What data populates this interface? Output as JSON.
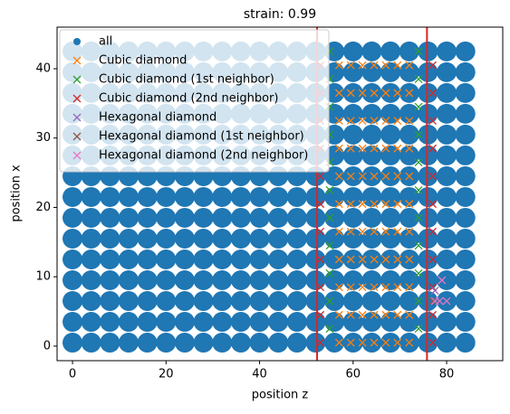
{
  "chart_data": {
    "type": "scatter",
    "title": "strain: 0.99",
    "xlabel": "position z",
    "ylabel": "position x",
    "xlim": [
      -3.3,
      92
    ],
    "ylim": [
      -2.1,
      46
    ],
    "xticks": [
      0,
      20,
      40,
      60,
      80
    ],
    "yticks": [
      0,
      10,
      20,
      30,
      40
    ],
    "legend": "upper left",
    "vlines": {
      "color": "#d62728",
      "values": [
        52.3,
        75.8
      ]
    },
    "series": [
      {
        "name": "all",
        "color": "#1f77b4",
        "marker": "o",
        "x": [
          0,
          4,
          8,
          12,
          16,
          20,
          24,
          28,
          32,
          36,
          40,
          44,
          48,
          52,
          56,
          60,
          64,
          68,
          72,
          76,
          80,
          84,
          0,
          4,
          8,
          12,
          16,
          20,
          24,
          28,
          32,
          36,
          40,
          44,
          48,
          52,
          56,
          60,
          64,
          68,
          72,
          76,
          80,
          84,
          0,
          4,
          8,
          12,
          16,
          20,
          24,
          28,
          32,
          36,
          40,
          44,
          48,
          52,
          56,
          60,
          64,
          68,
          72,
          76,
          80,
          84,
          0,
          4,
          8,
          12,
          16,
          20,
          24,
          28,
          32,
          36,
          40,
          44,
          48,
          52,
          56,
          60,
          64,
          68,
          72,
          76,
          80,
          84,
          0,
          4,
          8,
          12,
          16,
          20,
          24,
          28,
          32,
          36,
          40,
          44,
          48,
          52,
          56,
          60,
          64,
          68,
          72,
          76,
          80,
          84,
          0,
          4,
          8,
          12,
          16,
          20,
          24,
          28,
          32,
          36,
          40,
          44,
          48,
          52,
          56,
          60,
          64,
          68,
          72,
          76,
          80,
          84,
          0,
          4,
          8,
          12,
          16,
          20,
          24,
          28,
          32,
          36,
          40,
          44,
          48,
          52,
          56,
          60,
          64,
          68,
          72,
          76,
          80,
          84,
          0,
          4,
          8,
          12,
          16,
          20,
          24,
          28,
          32,
          36,
          40,
          44,
          48,
          52,
          56,
          60,
          64,
          68,
          72,
          76,
          80,
          84,
          0,
          4,
          8,
          12,
          16,
          20,
          24,
          28,
          32,
          36,
          40,
          44,
          48,
          52,
          56,
          60,
          64,
          68,
          72,
          76,
          80,
          84,
          0,
          4,
          8,
          12,
          16,
          20,
          24,
          28,
          32,
          36,
          40,
          44,
          48,
          52,
          56,
          60,
          64,
          68,
          72,
          76,
          80,
          84,
          0,
          4,
          8,
          12,
          16,
          20,
          24,
          28,
          32,
          36,
          40,
          44,
          48,
          52,
          56,
          60,
          64,
          68,
          72,
          76,
          80,
          84,
          0,
          4,
          8,
          12,
          16,
          20,
          24,
          28,
          32,
          36,
          40,
          44,
          48,
          52,
          56,
          60,
          64,
          68,
          72,
          76,
          80,
          84,
          0,
          4,
          8,
          12,
          16,
          20,
          24,
          28,
          32,
          36,
          40,
          44,
          48,
          52,
          56,
          60,
          64,
          68,
          72,
          76,
          80,
          84,
          0,
          4,
          8,
          12,
          16,
          20,
          24,
          28,
          32,
          36,
          40,
          44,
          48,
          52,
          56,
          60,
          64,
          68,
          72,
          76,
          80,
          84,
          0,
          4,
          8,
          12,
          16,
          20,
          24,
          28,
          32,
          36,
          40,
          44,
          48,
          52,
          56,
          60,
          64,
          68,
          72,
          76,
          80,
          84
        ],
        "y": [
          0.5,
          0.5,
          0.5,
          0.5,
          0.5,
          0.5,
          0.5,
          0.5,
          0.5,
          0.5,
          0.5,
          0.5,
          0.5,
          0.5,
          0.5,
          0.5,
          0.5,
          0.5,
          0.5,
          0.5,
          0.5,
          0.5,
          3.5,
          3.5,
          3.5,
          3.5,
          3.5,
          3.5,
          3.5,
          3.5,
          3.5,
          3.5,
          3.5,
          3.5,
          3.5,
          3.5,
          3.5,
          3.5,
          3.5,
          3.5,
          3.5,
          3.5,
          3.5,
          3.5,
          6.5,
          6.5,
          6.5,
          6.5,
          6.5,
          6.5,
          6.5,
          6.5,
          6.5,
          6.5,
          6.5,
          6.5,
          6.5,
          6.5,
          6.5,
          6.5,
          6.5,
          6.5,
          6.5,
          6.5,
          6.5,
          6.5,
          9.5,
          9.5,
          9.5,
          9.5,
          9.5,
          9.5,
          9.5,
          9.5,
          9.5,
          9.5,
          9.5,
          9.5,
          9.5,
          9.5,
          9.5,
          9.5,
          9.5,
          9.5,
          9.5,
          9.5,
          9.5,
          9.5,
          12.5,
          12.5,
          12.5,
          12.5,
          12.5,
          12.5,
          12.5,
          12.5,
          12.5,
          12.5,
          12.5,
          12.5,
          12.5,
          12.5,
          12.5,
          12.5,
          12.5,
          12.5,
          12.5,
          12.5,
          12.5,
          12.5,
          15.5,
          15.5,
          15.5,
          15.5,
          15.5,
          15.5,
          15.5,
          15.5,
          15.5,
          15.5,
          15.5,
          15.5,
          15.5,
          15.5,
          15.5,
          15.5,
          15.5,
          15.5,
          15.5,
          15.5,
          15.5,
          15.5,
          18.5,
          18.5,
          18.5,
          18.5,
          18.5,
          18.5,
          18.5,
          18.5,
          18.5,
          18.5,
          18.5,
          18.5,
          18.5,
          18.5,
          18.5,
          18.5,
          18.5,
          18.5,
          18.5,
          18.5,
          18.5,
          18.5,
          21.5,
          21.5,
          21.5,
          21.5,
          21.5,
          21.5,
          21.5,
          21.5,
          21.5,
          21.5,
          21.5,
          21.5,
          21.5,
          21.5,
          21.5,
          21.5,
          21.5,
          21.5,
          21.5,
          21.5,
          21.5,
          21.5,
          24.5,
          24.5,
          24.5,
          24.5,
          24.5,
          24.5,
          24.5,
          24.5,
          24.5,
          24.5,
          24.5,
          24.5,
          24.5,
          24.5,
          24.5,
          24.5,
          24.5,
          24.5,
          24.5,
          24.5,
          24.5,
          24.5,
          27.5,
          27.5,
          27.5,
          27.5,
          27.5,
          27.5,
          27.5,
          27.5,
          27.5,
          27.5,
          27.5,
          27.5,
          27.5,
          27.5,
          27.5,
          27.5,
          27.5,
          27.5,
          27.5,
          27.5,
          27.5,
          27.5,
          30.5,
          30.5,
          30.5,
          30.5,
          30.5,
          30.5,
          30.5,
          30.5,
          30.5,
          30.5,
          30.5,
          30.5,
          30.5,
          30.5,
          30.5,
          30.5,
          30.5,
          30.5,
          30.5,
          30.5,
          30.5,
          30.5,
          33.5,
          33.5,
          33.5,
          33.5,
          33.5,
          33.5,
          33.5,
          33.5,
          33.5,
          33.5,
          33.5,
          33.5,
          33.5,
          33.5,
          33.5,
          33.5,
          33.5,
          33.5,
          33.5,
          33.5,
          33.5,
          33.5,
          36.5,
          36.5,
          36.5,
          36.5,
          36.5,
          36.5,
          36.5,
          36.5,
          36.5,
          36.5,
          36.5,
          36.5,
          36.5,
          36.5,
          36.5,
          36.5,
          36.5,
          36.5,
          36.5,
          36.5,
          36.5,
          36.5,
          39.5,
          39.5,
          39.5,
          39.5,
          39.5,
          39.5,
          39.5,
          39.5,
          39.5,
          39.5,
          39.5,
          39.5,
          39.5,
          39.5,
          39.5,
          39.5,
          39.5,
          39.5,
          39.5,
          39.5,
          39.5,
          39.5,
          42.5,
          42.5,
          42.5,
          42.5,
          42.5,
          42.5,
          42.5,
          42.5,
          42.5,
          42.5,
          42.5,
          42.5,
          42.5,
          42.5,
          42.5,
          42.5,
          42.5,
          42.5,
          42.5,
          42.5,
          42.5,
          42.5
        ]
      },
      {
        "name": "Cubic diamond",
        "color": "#ff7f0e",
        "marker": "x",
        "x": [
          57,
          59.5,
          62,
          64.5,
          67,
          69.5,
          72,
          57,
          59.5,
          62,
          64.5,
          67,
          69.5,
          72,
          57,
          59.5,
          62,
          64.5,
          67,
          69.5,
          72,
          57,
          59.5,
          62,
          64.5,
          67,
          69.5,
          72,
          57,
          59.5,
          62,
          64.5,
          67,
          69.5,
          72,
          57,
          59.5,
          62,
          64.5,
          67,
          69.5,
          72,
          57,
          59.5,
          62,
          64.5,
          67,
          69.5,
          72,
          57,
          59.5,
          62,
          64.5,
          67,
          69.5,
          72,
          57,
          59.5,
          62,
          64.5,
          67,
          69.5,
          72,
          57,
          59.5,
          62,
          64.5,
          67,
          69.5,
          72,
          57,
          59.5,
          62,
          64.5,
          67,
          69.5,
          72
        ],
        "y": [
          0.5,
          0.5,
          0.5,
          0.5,
          0.5,
          0.5,
          0.5,
          4.5,
          4.5,
          4.5,
          4.5,
          4.5,
          4.5,
          4.5,
          8.5,
          8.5,
          8.5,
          8.5,
          8.5,
          8.5,
          8.5,
          12.5,
          12.5,
          12.5,
          12.5,
          12.5,
          12.5,
          12.5,
          16.5,
          16.5,
          16.5,
          16.5,
          16.5,
          16.5,
          16.5,
          20.5,
          20.5,
          20.5,
          20.5,
          20.5,
          20.5,
          20.5,
          24.5,
          24.5,
          24.5,
          24.5,
          24.5,
          24.5,
          24.5,
          28.5,
          28.5,
          28.5,
          28.5,
          28.5,
          28.5,
          28.5,
          32.5,
          32.5,
          32.5,
          32.5,
          32.5,
          32.5,
          32.5,
          36.5,
          36.5,
          36.5,
          36.5,
          36.5,
          36.5,
          36.5,
          40.5,
          40.5,
          40.5,
          40.5,
          40.5,
          40.5,
          40.5
        ]
      },
      {
        "name": "Cubic diamond (1st neighbor)",
        "color": "#2ca02c",
        "marker": "x",
        "x": [
          55,
          74,
          55,
          74,
          55,
          74,
          55,
          74,
          55,
          74,
          55,
          74,
          55,
          74,
          55,
          74,
          55,
          74,
          55,
          74,
          55,
          74
        ],
        "y": [
          2.5,
          2.5,
          6.5,
          6.5,
          10.5,
          10.5,
          14.5,
          14.5,
          18.5,
          18.5,
          22.5,
          22.5,
          26.5,
          26.5,
          30.5,
          30.5,
          34.5,
          34.5,
          38.5,
          38.5,
          42.5,
          42.5
        ]
      },
      {
        "name": "Cubic diamond (2nd neighbor)",
        "color": "#d62728",
        "marker": "x",
        "x": [
          53,
          77,
          53,
          77,
          53,
          77,
          53,
          77,
          53,
          77,
          53,
          77,
          53,
          77,
          53,
          77,
          53,
          77,
          53,
          77,
          53,
          77
        ],
        "y": [
          0.5,
          0.5,
          4.5,
          4.5,
          8.5,
          8.5,
          12.5,
          12.5,
          16.5,
          16.5,
          20.5,
          20.5,
          24.5,
          24.5,
          28.5,
          28.5,
          32.5,
          32.5,
          36.5,
          36.5,
          40.5,
          40.5
        ]
      },
      {
        "name": "Hexagonal diamond",
        "color": "#9467bd",
        "marker": "x",
        "x": [
          77.5
        ],
        "y": [
          8
        ]
      },
      {
        "name": "Hexagonal diamond (1st neighbor)",
        "color": "#8c564b",
        "marker": "x",
        "x": [
          77
        ],
        "y": [
          6.5
        ]
      },
      {
        "name": "Hexagonal diamond (2nd neighbor)",
        "color": "#e377c2",
        "marker": "x",
        "x": [
          77.5,
          78.5,
          80,
          79
        ],
        "y": [
          6.5,
          6.5,
          6.5,
          9.5
        ]
      }
    ]
  }
}
